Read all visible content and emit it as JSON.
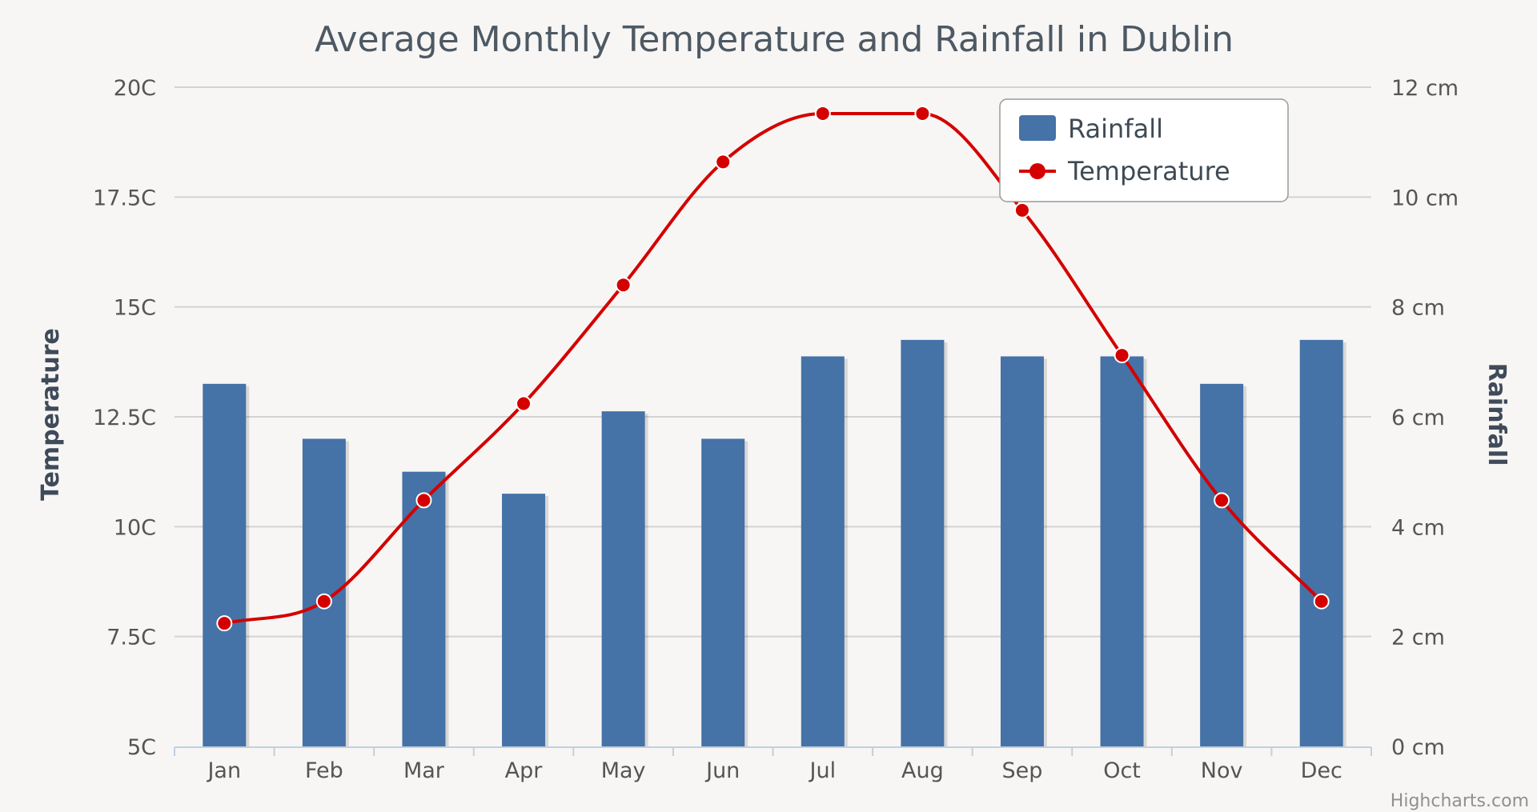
{
  "chart_data": {
    "type": "bar+line",
    "title": "Average Monthly Temperature and Rainfall in Dublin",
    "categories": [
      "Jan",
      "Feb",
      "Mar",
      "Apr",
      "May",
      "Jun",
      "Jul",
      "Aug",
      "Sep",
      "Oct",
      "Nov",
      "Dec"
    ],
    "series": [
      {
        "name": "Rainfall",
        "type": "column",
        "axis": "right",
        "values": [
          6.6,
          5.6,
          5.0,
          4.6,
          6.1,
          5.6,
          7.1,
          7.4,
          7.1,
          7.1,
          6.6,
          7.4
        ],
        "color": "#4572a7"
      },
      {
        "name": "Temperature",
        "type": "spline",
        "axis": "left",
        "values": [
          7.8,
          8.3,
          10.6,
          12.8,
          15.5,
          18.3,
          19.4,
          19.4,
          17.2,
          13.9,
          10.6,
          8.3
        ],
        "color": "#d40000"
      }
    ],
    "y_left": {
      "label": "Temperature",
      "min": 5,
      "max": 20,
      "ticks": [
        "5C",
        "7.5C",
        "10C",
        "12.5C",
        "15C",
        "17.5C",
        "20C"
      ]
    },
    "y_right": {
      "label": "Rainfall",
      "min": 0,
      "max": 12,
      "ticks": [
        "0 cm",
        "2 cm",
        "4 cm",
        "6 cm",
        "8 cm",
        "10 cm",
        "12 cm"
      ]
    },
    "legend": {
      "position": "top-right",
      "items": [
        "Rainfall",
        "Temperature"
      ]
    },
    "credits": "Highcharts.com",
    "grid": true
  }
}
